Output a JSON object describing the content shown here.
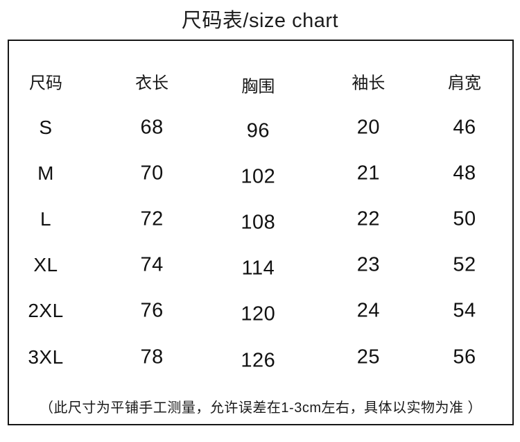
{
  "page": {
    "title": "尺码表/size chart"
  },
  "colors": {
    "background": "#ffffff",
    "text": "#111111",
    "border": "#161616"
  },
  "size_chart": {
    "columns": [
      "尺码",
      "衣长",
      "胸围",
      "袖长",
      "肩宽"
    ],
    "rows": [
      {
        "size": "S",
        "length": "68",
        "bust": "96",
        "sleeve": "20",
        "shoulder": "46"
      },
      {
        "size": "M",
        "length": "70",
        "bust": "102",
        "sleeve": "21",
        "shoulder": "48"
      },
      {
        "size": "L",
        "length": "72",
        "bust": "108",
        "sleeve": "22",
        "shoulder": "50"
      },
      {
        "size": "XL",
        "length": "74",
        "bust": "114",
        "sleeve": "23",
        "shoulder": "52"
      },
      {
        "size": "2XL",
        "length": "76",
        "bust": "120",
        "sleeve": "24",
        "shoulder": "54"
      },
      {
        "size": "3XL",
        "length": "78",
        "bust": "126",
        "sleeve": "25",
        "shoulder": "56"
      }
    ],
    "note": "（此尺寸为平铺手工测量，允许误差在1-3cm左右，具体以实物为准 ）"
  }
}
